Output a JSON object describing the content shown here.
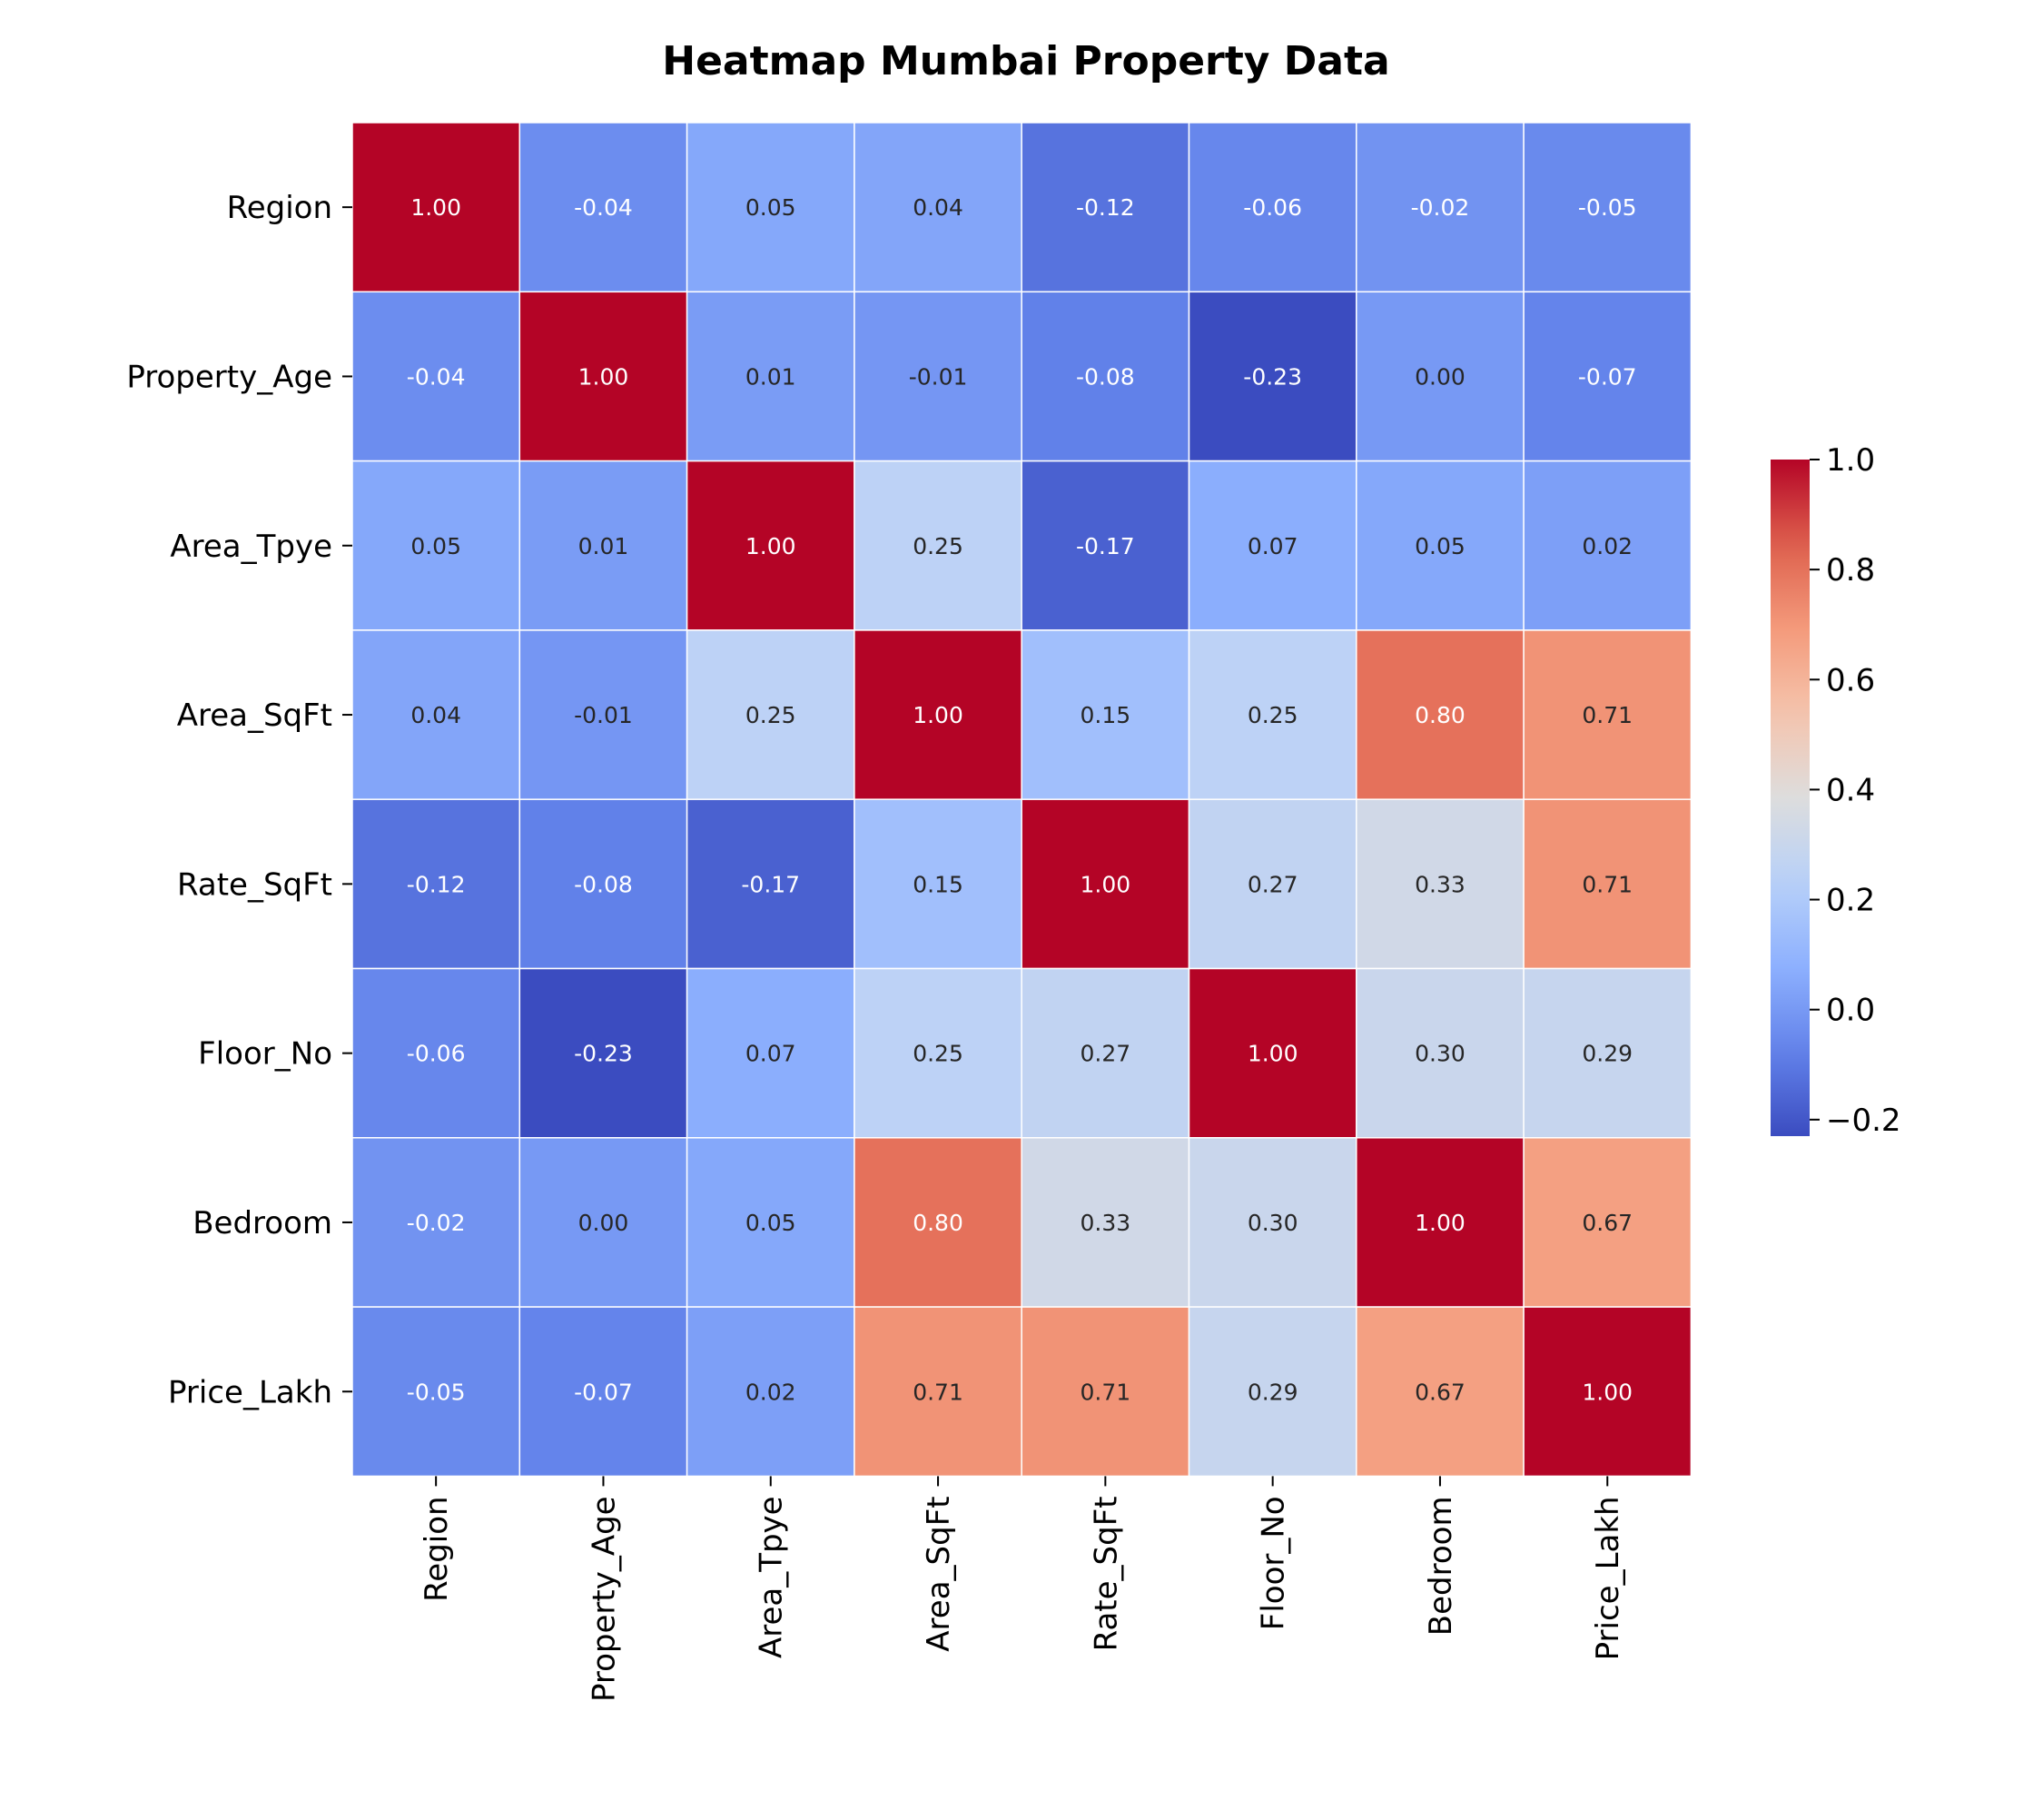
{
  "chart_data": {
    "type": "heatmap",
    "title": "Heatmap Mumbai Property Data",
    "rows": [
      "Region",
      "Property_Age",
      "Area_Tpye",
      "Area_SqFt",
      "Rate_SqFt",
      "Floor_No",
      "Bedroom",
      "Price_Lakh"
    ],
    "columns": [
      "Region",
      "Property_Age",
      "Area_Tpye",
      "Area_SqFt",
      "Rate_SqFt",
      "Floor_No",
      "Bedroom",
      "Price_Lakh"
    ],
    "values": [
      [
        1.0,
        -0.04,
        0.05,
        0.04,
        -0.12,
        -0.06,
        -0.02,
        -0.05
      ],
      [
        -0.04,
        1.0,
        0.01,
        -0.01,
        -0.08,
        -0.23,
        0.0,
        -0.07
      ],
      [
        0.05,
        0.01,
        1.0,
        0.25,
        -0.17,
        0.07,
        0.05,
        0.02
      ],
      [
        0.04,
        -0.01,
        0.25,
        1.0,
        0.15,
        0.25,
        0.8,
        0.71
      ],
      [
        -0.12,
        -0.08,
        -0.17,
        0.15,
        1.0,
        0.27,
        0.33,
        0.71
      ],
      [
        -0.06,
        -0.23,
        0.07,
        0.25,
        0.27,
        1.0,
        0.3,
        0.29
      ],
      [
        -0.02,
        0.0,
        0.05,
        0.8,
        0.33,
        0.3,
        1.0,
        0.67
      ],
      [
        -0.05,
        -0.07,
        0.02,
        0.71,
        0.71,
        0.29,
        0.67,
        1.0
      ]
    ],
    "value_format": "0.00",
    "colormap": "coolwarm",
    "colorbar": {
      "range": [
        -0.23,
        1.0
      ],
      "ticks": [
        -0.2,
        0.0,
        0.2,
        0.4,
        0.6,
        0.8,
        1.0
      ],
      "tick_labels": [
        "−0.2",
        "0.0",
        "0.2",
        "0.4",
        "0.6",
        "0.8",
        "1.0"
      ],
      "placement": "right"
    },
    "grid": false
  }
}
